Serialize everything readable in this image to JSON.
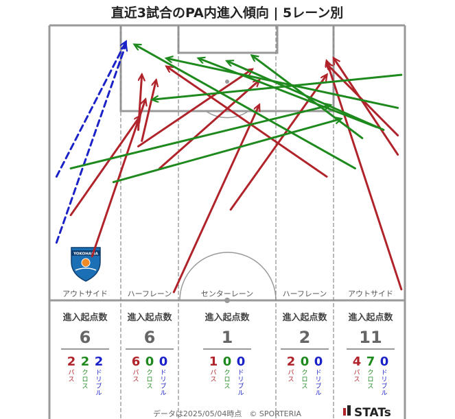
{
  "title": "直近3試合のPA内進入傾向 | 5レーン別",
  "chart_data": {
    "type": "arrow-map",
    "title": "直近3試合のPA内進入傾向 | 5レーン別",
    "lanes": [
      "アウトサイド",
      "ハーフレーン",
      "センターレーン",
      "ハーフレーン",
      "アウトサイド"
    ],
    "stat_header": "進入起点数",
    "lane_totals": [
      6,
      6,
      1,
      2,
      11
    ],
    "category_labels": [
      "パス",
      "クロス",
      "ドリブル"
    ],
    "lane_breakdown": [
      {
        "pass": 2,
        "cross": 2,
        "dribble": 2
      },
      {
        "pass": 6,
        "cross": 0,
        "dribble": 0
      },
      {
        "pass": 1,
        "cross": 0,
        "dribble": 0
      },
      {
        "pass": 2,
        "cross": 0,
        "dribble": 0
      },
      {
        "pass": 4,
        "cross": 7,
        "dribble": 0
      }
    ],
    "colors": {
      "pass": "#b0232a",
      "cross": "#1e8a1e",
      "dribble": "#1b22c7",
      "pitch_line": "#999999",
      "lane_line": "#8a8a8a",
      "text": "#222222",
      "muted": "#555555"
    },
    "arrows": [
      {
        "type": "dribble",
        "from": [
          2,
          45
        ],
        "to": [
          21.5,
          94
        ]
      },
      {
        "type": "dribble",
        "from": [
          2,
          21
        ],
        "to": [
          21.5,
          93
        ]
      },
      {
        "type": "pass",
        "from": [
          12,
          16
        ],
        "to": [
          27,
          73
        ]
      },
      {
        "type": "pass",
        "from": [
          6,
          31
        ],
        "to": [
          25.5,
          67
        ]
      },
      {
        "type": "pass",
        "from": [
          25,
          62
        ],
        "to": [
          26,
          82
        ]
      },
      {
        "type": "pass",
        "from": [
          26,
          58
        ],
        "to": [
          30,
          80
        ]
      },
      {
        "type": "pass",
        "from": [
          25,
          56
        ],
        "to": [
          57,
          84
        ]
      },
      {
        "type": "pass",
        "from": [
          31,
          48
        ],
        "to": [
          59,
          80
        ]
      },
      {
        "type": "pass",
        "from": [
          35,
          3
        ],
        "to": [
          59,
          71
        ]
      },
      {
        "type": "pass",
        "from": [
          51,
          33
        ],
        "to": [
          78,
          82
        ]
      },
      {
        "type": "pass",
        "from": [
          78,
          45
        ],
        "to": [
          33,
          85
        ]
      },
      {
        "type": "pass",
        "from": [
          99,
          4
        ],
        "to": [
          78,
          87
        ]
      },
      {
        "type": "pass",
        "from": [
          98,
          53
        ],
        "to": [
          80,
          88
        ]
      },
      {
        "type": "pass",
        "from": [
          98,
          60
        ],
        "to": [
          78,
          86
        ]
      },
      {
        "type": "cross",
        "from": [
          6,
          48
        ],
        "to": [
          79,
          71
        ]
      },
      {
        "type": "cross",
        "from": [
          18,
          43
        ],
        "to": [
          82,
          66
        ]
      },
      {
        "type": "cross",
        "from": [
          86,
          48
        ],
        "to": [
          24,
          93
        ]
      },
      {
        "type": "cross",
        "from": [
          99,
          82
        ],
        "to": [
          29,
          73
        ]
      },
      {
        "type": "cross",
        "from": [
          98,
          70
        ],
        "to": [
          33,
          88
        ]
      },
      {
        "type": "cross",
        "from": [
          92,
          63
        ],
        "to": [
          42,
          88
        ]
      },
      {
        "type": "cross",
        "from": [
          94,
          62
        ],
        "to": [
          50,
          87
        ]
      },
      {
        "type": "cross",
        "from": [
          88,
          59
        ],
        "to": [
          57,
          89
        ]
      }
    ]
  },
  "footer": {
    "note": "データは2025/05/04時点　© SPORTERIA",
    "brand": "STATs"
  },
  "logo": {
    "text": "YOKOHAMA"
  }
}
